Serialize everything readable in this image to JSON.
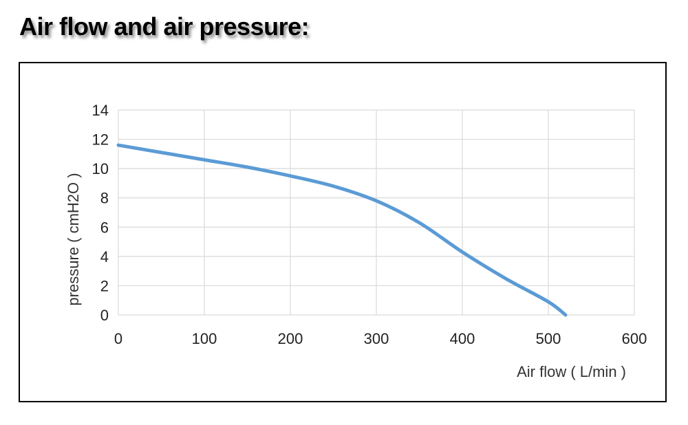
{
  "heading": "Air flow and air pressure:",
  "chart_data": {
    "type": "line",
    "title": "",
    "xlabel": "Air flow ( L/min )",
    "ylabel": "pressure ( cmH2O )",
    "xlim": [
      0,
      600
    ],
    "ylim": [
      0,
      14
    ],
    "xticks": [
      "0",
      "100",
      "200",
      "300",
      "400",
      "500",
      "600"
    ],
    "yticks": [
      "0",
      "2",
      "4",
      "6",
      "8",
      "10",
      "12",
      "14"
    ],
    "grid": true,
    "legend": "none",
    "line_color": "#5b9bd5",
    "grid_color": "#d9d9d9",
    "series": [
      {
        "x": [
          0,
          50,
          100,
          150,
          200,
          250,
          300,
          350,
          400,
          450,
          500,
          520
        ],
        "y": [
          11.6,
          11.1,
          10.6,
          10.1,
          9.5,
          8.8,
          7.8,
          6.3,
          4.3,
          2.5,
          0.9,
          0.0
        ]
      }
    ]
  }
}
